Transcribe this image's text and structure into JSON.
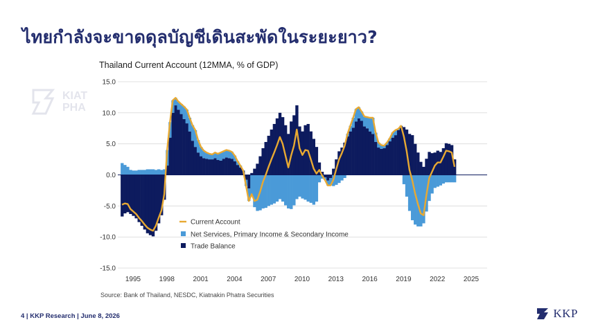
{
  "slide": {
    "title": "ไทยกำลังจะขาดดุลบัญชีเดินสะพัดในระยะยาว?",
    "source": "Source: Bank of Thailand, NESDC, Kiatnakin Phatra Securities",
    "footer": "4  | KKP Research | June 8, 2026",
    "logo_text": "KKP",
    "watermark_text": [
      "KIAT",
      "PHA"
    ]
  },
  "colors": {
    "title": "#232d6e",
    "trade_balance": "#0d1b5e",
    "net_services": "#4a9ad8",
    "current_account": "#e8a932"
  },
  "chart_data": {
    "type": "bar",
    "title": "Thailand Current Account (12MMA, % of GDP)",
    "ylim": [
      -15,
      15
    ],
    "yticks": [
      "15.0",
      "10.0",
      "5.0",
      "0.0",
      "-5.0",
      "-10.0",
      "-15.0"
    ],
    "xticks": [
      "1995",
      "1998",
      "2001",
      "2004",
      "2007",
      "2010",
      "2013",
      "2016",
      "2019",
      "2022",
      "2025"
    ],
    "x_start": 1993.9,
    "x_step": 0.25,
    "legend": [
      "Current Account",
      "Net Services, Primary Income & Secondary Income",
      "Trade Balance"
    ],
    "series": [
      {
        "name": "Trade Balance",
        "values": [
          -6.7,
          -6.2,
          -6.0,
          -6.3,
          -6.6,
          -7.0,
          -7.6,
          -8.2,
          -8.8,
          -9.4,
          -9.7,
          -9.9,
          -9.0,
          -7.8,
          -6.5,
          -4.0,
          1.5,
          6.0,
          10.0,
          11.2,
          10.5,
          9.8,
          9.0,
          8.3,
          7.0,
          5.5,
          4.5,
          3.6,
          3.0,
          2.7,
          2.6,
          2.5,
          2.5,
          2.7,
          2.4,
          2.3,
          2.6,
          2.8,
          2.7,
          2.6,
          2.2,
          1.6,
          1.2,
          0.7,
          -0.8,
          -2.2,
          0.3,
          1.0,
          1.8,
          3.0,
          4.3,
          5.3,
          6.3,
          7.3,
          8.2,
          9.1,
          10.0,
          9.3,
          8.0,
          6.6,
          8.6,
          9.6,
          11.2,
          7.8,
          7.0,
          8.0,
          8.2,
          7.0,
          5.8,
          4.5,
          2.0,
          0.5,
          -0.4,
          -0.9,
          -0.5,
          1.0,
          2.5,
          3.8,
          4.4,
          5.2,
          6.2,
          7.0,
          7.6,
          8.6,
          9.1,
          8.7,
          7.8,
          7.5,
          7.0,
          6.6,
          5.3,
          4.4,
          4.2,
          4.3,
          4.8,
          5.4,
          6.0,
          6.4,
          7.2,
          7.9,
          7.7,
          7.3,
          6.6,
          6.4,
          5.0,
          3.6,
          2.1,
          1.3,
          2.6,
          3.7,
          3.5,
          3.6,
          3.9,
          3.7,
          4.3,
          5.1,
          5.0,
          4.8,
          2.5
        ]
      },
      {
        "name": "Net Services, Primary Income & Secondary Income",
        "values": [
          1.9,
          1.6,
          1.3,
          0.8,
          0.7,
          0.7,
          0.8,
          0.8,
          0.8,
          0.9,
          0.9,
          0.9,
          0.8,
          0.9,
          0.8,
          0.9,
          2.5,
          2.5,
          2.0,
          1.2,
          1.3,
          1.6,
          2.0,
          2.2,
          2.2,
          2.5,
          2.7,
          2.0,
          1.5,
          1.2,
          1.0,
          0.9,
          0.8,
          0.9,
          1.0,
          1.3,
          1.2,
          1.2,
          1.2,
          1.1,
          0.9,
          0.6,
          0.3,
          0.0,
          -1.0,
          -2.0,
          -3.4,
          -5.2,
          -5.8,
          -5.7,
          -5.4,
          -5.3,
          -5.0,
          -4.8,
          -4.6,
          -4.3,
          -3.9,
          -4.3,
          -4.9,
          -5.4,
          -5.5,
          -4.9,
          -3.9,
          -3.5,
          -3.8,
          -4.0,
          -4.3,
          -4.5,
          -4.8,
          -4.3,
          -1.2,
          -0.6,
          -0.4,
          -0.8,
          -1.2,
          -1.8,
          -1.6,
          -1.3,
          -0.9,
          -0.5,
          0.4,
          0.9,
          1.6,
          2.0,
          1.8,
          1.5,
          1.6,
          1.8,
          2.2,
          2.6,
          1.5,
          0.8,
          0.6,
          0.4,
          0.4,
          0.5,
          0.8,
          0.8,
          0.2,
          0.0,
          -1.5,
          -3.5,
          -5.8,
          -7.3,
          -8.0,
          -8.3,
          -8.3,
          -7.8,
          -5.9,
          -4.2,
          -3.0,
          -2.1,
          -1.9,
          -1.7,
          -1.4,
          -1.2,
          -1.2,
          -1.2,
          -1.2
        ]
      },
      {
        "name": "Current Account",
        "values": [
          -4.8,
          -4.6,
          -4.7,
          -5.5,
          -5.9,
          -6.3,
          -6.9,
          -7.4,
          -8.0,
          -8.5,
          -8.8,
          -9.0,
          -8.2,
          -6.9,
          -5.7,
          -3.1,
          4.0,
          8.5,
          12.0,
          12.4,
          11.8,
          11.4,
          11.0,
          10.5,
          9.2,
          8.0,
          7.2,
          5.6,
          4.5,
          3.9,
          3.6,
          3.4,
          3.3,
          3.6,
          3.4,
          3.6,
          3.8,
          4.0,
          3.9,
          3.7,
          3.1,
          2.2,
          1.5,
          0.7,
          -1.8,
          -4.2,
          -3.1,
          -4.2,
          -4.0,
          -2.7,
          -1.1,
          0.0,
          1.3,
          2.5,
          3.6,
          4.8,
          6.1,
          5.0,
          3.1,
          1.2,
          3.1,
          4.7,
          7.3,
          4.3,
          3.2,
          4.0,
          3.9,
          2.5,
          1.0,
          0.2,
          0.8,
          -0.1,
          -0.8,
          -1.7,
          -1.7,
          -0.8,
          0.9,
          2.5,
          3.5,
          4.7,
          6.6,
          7.9,
          9.2,
          10.6,
          10.9,
          10.2,
          9.4,
          9.3,
          9.2,
          9.2,
          6.8,
          5.2,
          4.8,
          4.7,
          5.2,
          5.9,
          6.8,
          7.2,
          7.4,
          7.9,
          6.2,
          3.8,
          0.8,
          -0.9,
          -3.0,
          -4.7,
          -6.2,
          -6.5,
          -3.3,
          -0.5,
          0.5,
          1.5,
          2.0,
          2.0,
          2.9,
          3.9,
          3.8,
          3.6,
          1.3
        ]
      }
    ]
  }
}
